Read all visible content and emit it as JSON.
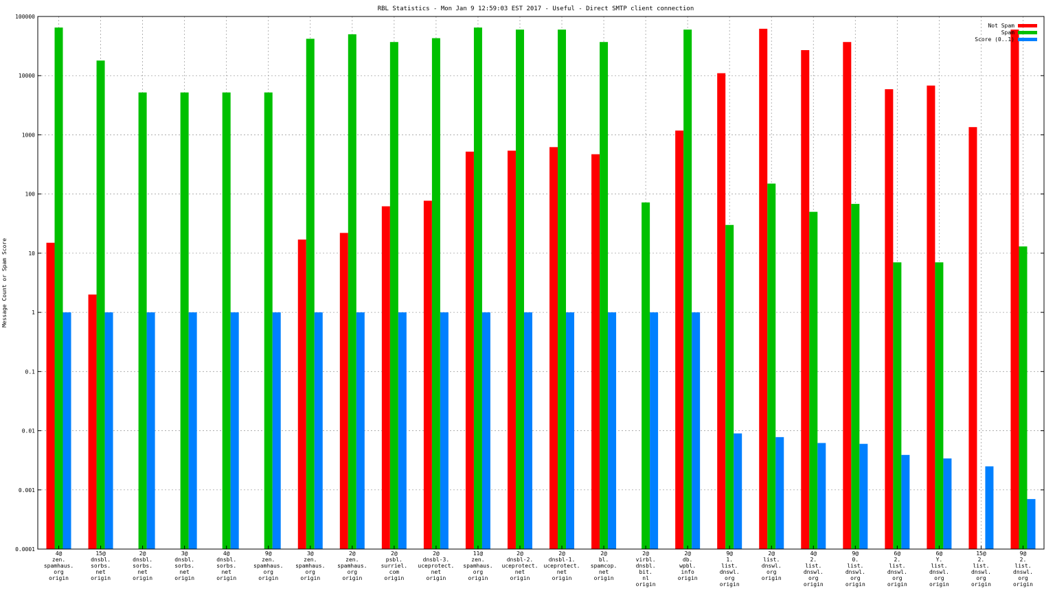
{
  "chart_data": {
    "type": "bar",
    "title": "RBL Statistics - Mon Jan  9 12:59:03 EST 2017 - Useful - Direct SMTP client connection",
    "xlabel": "",
    "ylabel": "Message Count or Spam Score",
    "yscale": "log",
    "ylim": [
      0.0001,
      100000
    ],
    "yticks": [
      "0.0001",
      "0.001",
      "0.01",
      "0.1",
      "1",
      "10",
      "100",
      "1000",
      "10000",
      "100000"
    ],
    "grid": true,
    "legend_position": "top-right",
    "categories": [
      [
        "4@",
        "zen.",
        "spamhaus.",
        "org",
        "origin"
      ],
      [
        "15@",
        "dnsbl.",
        "sorbs.",
        "net",
        "origin"
      ],
      [
        "2@",
        "dnsbl.",
        "sorbs.",
        "net",
        "origin"
      ],
      [
        "3@",
        "dnsbl.",
        "sorbs.",
        "net",
        "origin"
      ],
      [
        "4@",
        "dnsbl.",
        "sorbs.",
        "net",
        "origin"
      ],
      [
        "9@",
        "zen.",
        "spamhaus.",
        "org",
        "origin"
      ],
      [
        "3@",
        "zen.",
        "spamhaus.",
        "org",
        "origin"
      ],
      [
        "2@",
        "zen.",
        "spamhaus.",
        "org",
        "origin"
      ],
      [
        "2@",
        "psbl.",
        "surriel.",
        "com",
        "origin"
      ],
      [
        "2@",
        "dnsbl-3.",
        "uceprotect.",
        "net",
        "origin"
      ],
      [
        "11@",
        "zen.",
        "spamhaus.",
        "org",
        "origin"
      ],
      [
        "2@",
        "dnsbl-2.",
        "uceprotect.",
        "net",
        "origin"
      ],
      [
        "2@",
        "dnsbl-1.",
        "uceprotect.",
        "net",
        "origin"
      ],
      [
        "2@",
        "bl.",
        "spamcop.",
        "net",
        "origin"
      ],
      [
        "2@",
        "virbl.",
        "dnsbl.",
        "bit.",
        "nl",
        "origin"
      ],
      [
        "2@",
        "db.",
        "wpbl.",
        "info",
        "origin"
      ],
      [
        "9@",
        "1.",
        "list.",
        "dnswl.",
        "org",
        "origin"
      ],
      [
        "2@",
        "list.",
        "dnswl.",
        "org",
        "origin"
      ],
      [
        "4@",
        "2.",
        "list.",
        "dnswl.",
        "org",
        "origin"
      ],
      [
        "9@",
        "0.",
        "list.",
        "dnswl.",
        "org",
        "origin"
      ],
      [
        "6@",
        "2.",
        "list.",
        "dnswl.",
        "org",
        "origin"
      ],
      [
        "6@",
        "Y.",
        "list.",
        "dnswl.",
        "org",
        "origin"
      ],
      [
        "15@",
        "2.",
        "list.",
        "dnswl.",
        "org",
        "origin"
      ],
      [
        "9@",
        "2.",
        "list.",
        "dnswl.",
        "org",
        "origin"
      ]
    ],
    "series": [
      {
        "name": "Not Spam",
        "color": "#ff0000",
        "values": [
          15,
          2,
          null,
          null,
          null,
          null,
          17,
          22,
          62,
          77,
          520,
          540,
          620,
          470,
          null,
          1180,
          11000,
          62000,
          27000,
          37000,
          5900,
          6800,
          1350,
          60000
        ]
      },
      {
        "name": "Spam",
        "color": "#00c000",
        "values": [
          65000,
          18000,
          5200,
          5200,
          5200,
          5200,
          42000,
          50000,
          37000,
          43000,
          65000,
          60000,
          60000,
          37000,
          72,
          60000,
          30,
          150,
          50,
          68,
          7,
          7,
          null,
          13
        ]
      },
      {
        "name": "Score (0..1)",
        "color": "#0080ff",
        "values": [
          1,
          1,
          1,
          1,
          1,
          1,
          1,
          1,
          1,
          1,
          1,
          1,
          1,
          1,
          1,
          1,
          0.009,
          0.0078,
          0.0062,
          0.006,
          0.0039,
          0.0034,
          0.0025,
          0.0007
        ]
      }
    ]
  }
}
